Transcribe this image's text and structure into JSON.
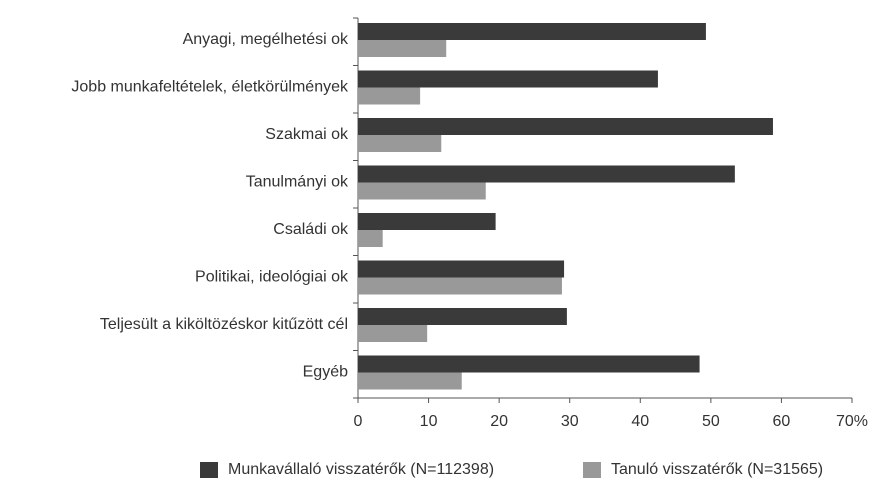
{
  "chart_data": {
    "type": "hbar",
    "categories": [
      "Anyagi, megélhetési ok",
      "Jobb munkafeltételek, életkörülmények",
      "Szakmai ok",
      "Tanulmányi ok",
      "Családi ok",
      "Politikai, ideológiai ok",
      "Teljesült a kiköltözéskor kitűzött cél",
      "Egyéb"
    ],
    "series": [
      {
        "name": "Munkavállaló visszatérők (N=112398)",
        "color": "#3a3a3a",
        "values": [
          49.3,
          42.5,
          58.8,
          53.4,
          19.5,
          29.2,
          29.6,
          48.4
        ]
      },
      {
        "name": "Tanuló visszatérők (N=31565)",
        "color": "#999999",
        "values": [
          12.5,
          8.8,
          11.8,
          18.1,
          3.5,
          28.9,
          9.8,
          14.7
        ]
      }
    ],
    "xlim": [
      0,
      70
    ],
    "xticks": [
      0,
      10,
      20,
      30,
      40,
      50,
      60,
      {
        "value": 70,
        "label": "70%"
      }
    ],
    "grid": false,
    "legend": "bottom"
  }
}
